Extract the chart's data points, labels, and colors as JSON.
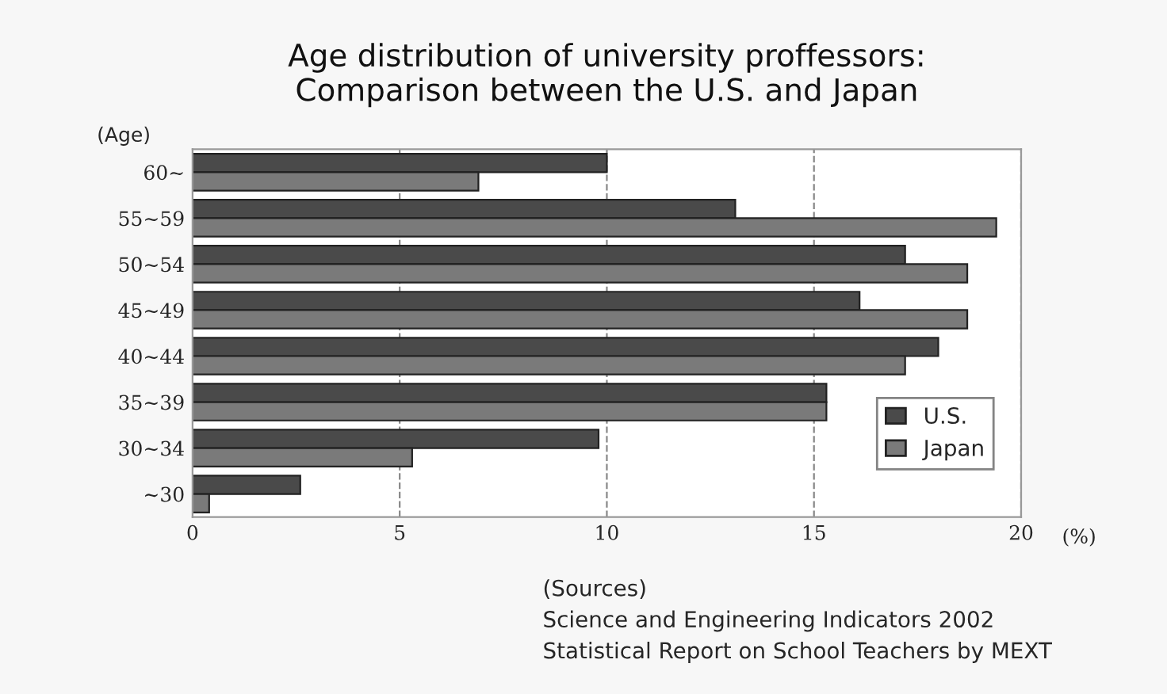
{
  "chart_data": {
    "type": "bar",
    "orientation": "horizontal",
    "title": "Age distribution of university proffessors:\nComparison between the U.S. and Japan",
    "ylabel": "(Age)",
    "xlabel": "(%)",
    "categories": [
      "60~",
      "55~59",
      "50~54",
      "45~49",
      "40~44",
      "35~39",
      "30~34",
      "~30"
    ],
    "series": [
      {
        "name": "U.S.",
        "color": "#4a4a4a",
        "values": [
          10.0,
          13.1,
          17.2,
          16.1,
          18.0,
          15.3,
          9.8,
          2.6
        ]
      },
      {
        "name": "Japan",
        "color": "#7a7a7a",
        "values": [
          6.9,
          19.4,
          18.7,
          18.7,
          17.2,
          15.3,
          5.3,
          0.4
        ]
      }
    ],
    "xlim": [
      0,
      20
    ],
    "xticks": [
      0,
      5,
      10,
      15,
      20
    ],
    "grid": "x",
    "legend": "bottom right",
    "annotations": [
      "(Sources)",
      "Science and Engineering Indicators 2002",
      "Statistical Report on School Teachers by MEXT"
    ]
  }
}
